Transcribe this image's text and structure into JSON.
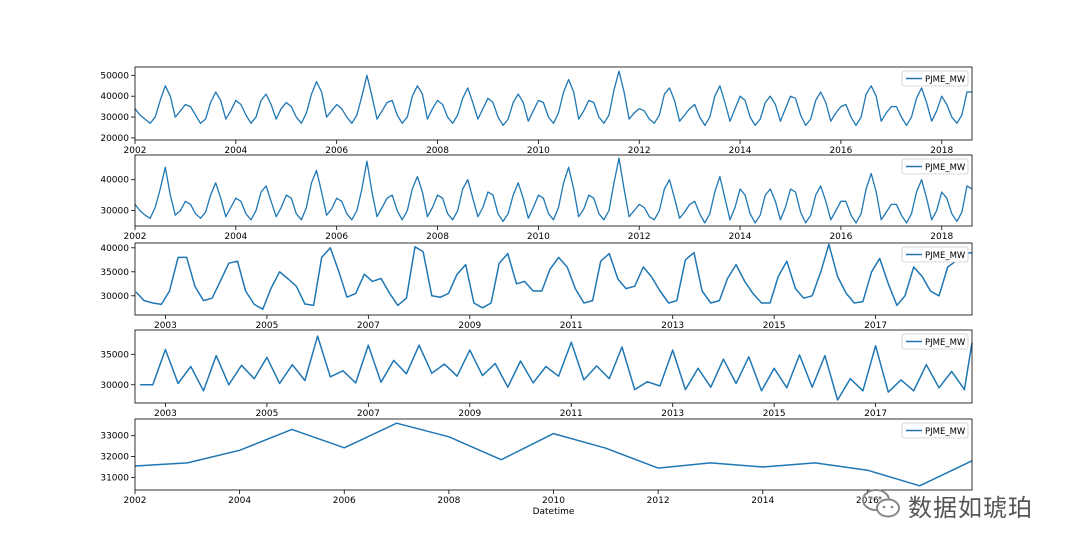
{
  "chart_data": [
    {
      "type": "line",
      "series": [
        {
          "name": "PJME_MW"
        }
      ],
      "legend": "upper right",
      "xlim": [
        2002.0,
        2018.6
      ],
      "ylim": [
        19000,
        54000
      ],
      "x_ticks": [
        "2002",
        "2004",
        "2006",
        "2008",
        "2010",
        "2012",
        "2014",
        "2016",
        "2018"
      ],
      "y_ticks": [
        "20000",
        "30000",
        "40000",
        "50000"
      ],
      "x": [
        2002.0,
        2002.1,
        2002.2,
        2002.3,
        2002.4,
        2002.5,
        2002.6,
        2002.7,
        2002.8,
        2002.9,
        2003.0,
        2003.1,
        2003.2,
        2003.3,
        2003.4,
        2003.5,
        2003.6,
        2003.7,
        2003.8,
        2003.9,
        2004.0,
        2004.1,
        2004.2,
        2004.3,
        2004.4,
        2004.5,
        2004.6,
        2004.7,
        2004.8,
        2004.9,
        2005.0,
        2005.1,
        2005.2,
        2005.3,
        2005.4,
        2005.5,
        2005.6,
        2005.7,
        2005.8,
        2005.9,
        2006.0,
        2006.1,
        2006.2,
        2006.3,
        2006.4,
        2006.5,
        2006.6,
        2006.7,
        2006.8,
        2006.9,
        2007.0,
        2007.1,
        2007.2,
        2007.3,
        2007.4,
        2007.5,
        2007.6,
        2007.7,
        2007.8,
        2007.9,
        2008.0,
        2008.1,
        2008.2,
        2008.3,
        2008.4,
        2008.5,
        2008.6,
        2008.7,
        2008.8,
        2008.9,
        2009.0,
        2009.1,
        2009.2,
        2009.3,
        2009.4,
        2009.5,
        2009.6,
        2009.7,
        2009.8,
        2009.9,
        2010.0,
        2010.1,
        2010.2,
        2010.3,
        2010.4,
        2010.5,
        2010.6,
        2010.7,
        2010.8,
        2010.9,
        2011.0,
        2011.1,
        2011.2,
        2011.3,
        2011.4,
        2011.5,
        2011.6,
        2011.7,
        2011.8,
        2011.9,
        2012.0,
        2012.1,
        2012.2,
        2012.3,
        2012.4,
        2012.5,
        2012.6,
        2012.7,
        2012.8,
        2012.9,
        2013.0,
        2013.1,
        2013.2,
        2013.3,
        2013.4,
        2013.5,
        2013.6,
        2013.7,
        2013.8,
        2013.9,
        2014.0,
        2014.1,
        2014.2,
        2014.3,
        2014.4,
        2014.5,
        2014.6,
        2014.7,
        2014.8,
        2014.9,
        2015.0,
        2015.1,
        2015.2,
        2015.3,
        2015.4,
        2015.5,
        2015.6,
        2015.7,
        2015.8,
        2015.9,
        2016.0,
        2016.1,
        2016.2,
        2016.3,
        2016.4,
        2016.5,
        2016.6,
        2016.7,
        2016.8,
        2016.9,
        2017.0,
        2017.1,
        2017.2,
        2017.3,
        2017.4,
        2017.5,
        2017.6,
        2017.7,
        2017.8,
        2017.9,
        2018.0,
        2018.1,
        2018.2,
        2018.3,
        2018.4,
        2018.5,
        2018.6
      ],
      "values": [
        34000,
        31000,
        29000,
        27000,
        30000,
        38000,
        45000,
        40000,
        30000,
        33000,
        36000,
        35000,
        31000,
        27000,
        29000,
        37000,
        42000,
        38000,
        29000,
        33000,
        38000,
        36000,
        31000,
        27000,
        30000,
        38000,
        41000,
        36000,
        29000,
        34000,
        37000,
        35000,
        30000,
        27000,
        32000,
        41000,
        47000,
        42000,
        30000,
        33000,
        36000,
        34000,
        30000,
        27000,
        31000,
        40000,
        50000,
        40000,
        29000,
        33000,
        37000,
        38000,
        31000,
        27000,
        30000,
        40000,
        45000,
        41000,
        29000,
        34000,
        38000,
        36000,
        30000,
        27000,
        31000,
        39000,
        44000,
        37000,
        29000,
        34000,
        39000,
        37000,
        30000,
        26000,
        29000,
        37000,
        41000,
        37000,
        28000,
        33000,
        38000,
        37000,
        30000,
        27000,
        32000,
        42000,
        48000,
        42000,
        29000,
        33000,
        38000,
        37000,
        30000,
        27000,
        31000,
        43000,
        52000,
        42000,
        29000,
        32000,
        34000,
        33000,
        29000,
        27000,
        31000,
        41000,
        44000,
        38000,
        28000,
        31000,
        34000,
        36000,
        30000,
        26000,
        30000,
        40000,
        45000,
        37000,
        28000,
        34000,
        40000,
        38000,
        30000,
        26000,
        29000,
        37000,
        40000,
        36000,
        28000,
        34000,
        40000,
        39000,
        31000,
        26000,
        29000,
        38000,
        42000,
        37000,
        28000,
        32000,
        35000,
        36000,
        30000,
        26000,
        30000,
        41000,
        45000,
        40000,
        28000,
        32000,
        35000,
        35000,
        30000,
        26000,
        30000,
        39000,
        44000,
        37000,
        28000,
        33000,
        40000,
        36000,
        30000,
        27000,
        31000,
        42000,
        42000
      ]
    },
    {
      "type": "line",
      "series": [
        {
          "name": "PJME_MW"
        }
      ],
      "legend": "upper right",
      "xlim": [
        2002.0,
        2018.6
      ],
      "ylim": [
        25000,
        48000
      ],
      "x_ticks": [
        "2002",
        "2004",
        "2006",
        "2008",
        "2010",
        "2012",
        "2014",
        "2016",
        "2018"
      ],
      "y_ticks": [
        "30000",
        "40000"
      ],
      "x": [
        2002.0,
        2002.1,
        2002.2,
        2002.3,
        2002.4,
        2002.5,
        2002.6,
        2002.7,
        2002.8,
        2002.9,
        2003.0,
        2003.1,
        2003.2,
        2003.3,
        2003.4,
        2003.5,
        2003.6,
        2003.7,
        2003.8,
        2003.9,
        2004.0,
        2004.1,
        2004.2,
        2004.3,
        2004.4,
        2004.5,
        2004.6,
        2004.7,
        2004.8,
        2004.9,
        2005.0,
        2005.1,
        2005.2,
        2005.3,
        2005.4,
        2005.5,
        2005.6,
        2005.7,
        2005.8,
        2005.9,
        2006.0,
        2006.1,
        2006.2,
        2006.3,
        2006.4,
        2006.5,
        2006.6,
        2006.7,
        2006.8,
        2006.9,
        2007.0,
        2007.1,
        2007.2,
        2007.3,
        2007.4,
        2007.5,
        2007.6,
        2007.7,
        2007.8,
        2007.9,
        2008.0,
        2008.1,
        2008.2,
        2008.3,
        2008.4,
        2008.5,
        2008.6,
        2008.7,
        2008.8,
        2008.9,
        2009.0,
        2009.1,
        2009.2,
        2009.3,
        2009.4,
        2009.5,
        2009.6,
        2009.7,
        2009.8,
        2009.9,
        2010.0,
        2010.1,
        2010.2,
        2010.3,
        2010.4,
        2010.5,
        2010.6,
        2010.7,
        2010.8,
        2010.9,
        2011.0,
        2011.1,
        2011.2,
        2011.3,
        2011.4,
        2011.5,
        2011.6,
        2011.7,
        2011.8,
        2011.9,
        2012.0,
        2012.1,
        2012.2,
        2012.3,
        2012.4,
        2012.5,
        2012.6,
        2012.7,
        2012.8,
        2012.9,
        2013.0,
        2013.1,
        2013.2,
        2013.3,
        2013.4,
        2013.5,
        2013.6,
        2013.7,
        2013.8,
        2013.9,
        2014.0,
        2014.1,
        2014.2,
        2014.3,
        2014.4,
        2014.5,
        2014.6,
        2014.7,
        2014.8,
        2014.9,
        2015.0,
        2015.1,
        2015.2,
        2015.3,
        2015.4,
        2015.5,
        2015.6,
        2015.7,
        2015.8,
        2015.9,
        2016.0,
        2016.1,
        2016.2,
        2016.3,
        2016.4,
        2016.5,
        2016.6,
        2016.7,
        2016.8,
        2016.9,
        2017.0,
        2017.1,
        2017.2,
        2017.3,
        2017.4,
        2017.5,
        2017.6,
        2017.7,
        2017.8,
        2017.9,
        2018.0,
        2018.1,
        2018.2,
        2018.3,
        2018.4,
        2018.5,
        2018.6
      ],
      "values": [
        32000,
        30000,
        28500,
        27500,
        31000,
        37000,
        44000,
        35000,
        28500,
        30000,
        33000,
        32000,
        29000,
        27500,
        29500,
        35000,
        39000,
        34000,
        28000,
        31000,
        34000,
        33000,
        29000,
        27000,
        30000,
        36000,
        38000,
        33000,
        28000,
        31000,
        35000,
        34000,
        29000,
        27000,
        31000,
        39000,
        43000,
        36000,
        28500,
        30500,
        34000,
        33000,
        29000,
        27000,
        30000,
        37000,
        46000,
        36000,
        28000,
        31000,
        34000,
        35000,
        30000,
        27000,
        30000,
        37000,
        41000,
        36000,
        28000,
        31000,
        35000,
        34000,
        29000,
        27000,
        30000,
        37000,
        40000,
        34000,
        28000,
        31000,
        36000,
        35000,
        29000,
        26500,
        29000,
        35000,
        39000,
        34000,
        27500,
        31000,
        35000,
        34000,
        29000,
        27000,
        31000,
        39000,
        44000,
        37000,
        28000,
        30500,
        35000,
        34000,
        29000,
        27000,
        30000,
        39000,
        47000,
        37000,
        28000,
        30000,
        32000,
        31000,
        28000,
        27000,
        30000,
        37000,
        40000,
        34000,
        27500,
        29500,
        32000,
        33000,
        29000,
        26000,
        29000,
        36000,
        41000,
        34000,
        27000,
        31000,
        37000,
        35000,
        29000,
        26000,
        28500,
        35000,
        37000,
        33000,
        27000,
        31000,
        37000,
        36000,
        29500,
        26000,
        28500,
        35000,
        38000,
        33000,
        27000,
        30000,
        33000,
        33000,
        28500,
        26000,
        29000,
        37000,
        42000,
        36000,
        27000,
        29500,
        32000,
        32000,
        28500,
        26000,
        29000,
        36000,
        40000,
        34000,
        27000,
        30000,
        36000,
        34000,
        29000,
        26500,
        29500,
        38000,
        37000
      ]
    },
    {
      "type": "line",
      "series": [
        {
          "name": "PJME_MW"
        }
      ],
      "legend": "upper right",
      "xlim": [
        2002.4,
        2018.9
      ],
      "ylim": [
        26000,
        41000
      ],
      "x_ticks": [
        "2003",
        "2005",
        "2007",
        "2009",
        "2011",
        "2013",
        "2015",
        "2017"
      ],
      "y_ticks": [
        "30000",
        "35000",
        "40000"
      ],
      "x": [
        2002.42,
        2002.58,
        2002.75,
        2002.92,
        2003.08,
        2003.25,
        2003.42,
        2003.58,
        2003.75,
        2003.92,
        2004.08,
        2004.25,
        2004.42,
        2004.58,
        2004.75,
        2004.92,
        2005.08,
        2005.25,
        2005.42,
        2005.58,
        2005.75,
        2005.92,
        2006.08,
        2006.25,
        2006.42,
        2006.58,
        2006.75,
        2006.92,
        2007.08,
        2007.25,
        2007.42,
        2007.58,
        2007.75,
        2007.92,
        2008.08,
        2008.25,
        2008.42,
        2008.58,
        2008.75,
        2008.92,
        2009.08,
        2009.25,
        2009.42,
        2009.58,
        2009.75,
        2009.92,
        2010.08,
        2010.25,
        2010.42,
        2010.58,
        2010.75,
        2010.92,
        2011.08,
        2011.25,
        2011.42,
        2011.58,
        2011.75,
        2011.92,
        2012.08,
        2012.25,
        2012.42,
        2012.58,
        2012.75,
        2012.92,
        2013.08,
        2013.25,
        2013.42,
        2013.58,
        2013.75,
        2013.92,
        2014.08,
        2014.25,
        2014.42,
        2014.58,
        2014.75,
        2014.92,
        2015.08,
        2015.25,
        2015.42,
        2015.58,
        2015.75,
        2015.92,
        2016.08,
        2016.25,
        2016.42,
        2016.58,
        2016.75,
        2016.92,
        2017.08,
        2017.25,
        2017.42,
        2017.58,
        2017.75,
        2017.92,
        2018.08,
        2018.25,
        2018.42,
        2018.58,
        2018.75,
        2018.9
      ],
      "values": [
        30800,
        29000,
        28500,
        28200,
        31000,
        38000,
        38000,
        32000,
        29000,
        29500,
        33000,
        36800,
        37200,
        31000,
        28200,
        27200,
        31500,
        35000,
        33500,
        32000,
        28300,
        28000,
        38000,
        40000,
        35000,
        29700,
        30500,
        34500,
        33000,
        33600,
        30500,
        28000,
        29500,
        40200,
        39200,
        30000,
        29700,
        30500,
        34500,
        36500,
        28500,
        27500,
        28500,
        36800,
        38800,
        32500,
        33000,
        31000,
        31000,
        35500,
        38000,
        36000,
        31500,
        28500,
        29000,
        37200,
        38800,
        33500,
        31500,
        32000,
        36000,
        34000,
        31000,
        28500,
        29000,
        37500,
        39000,
        31000,
        28500,
        29000,
        33600,
        36500,
        33000,
        30500,
        28500,
        28500,
        34000,
        37200,
        31500,
        29500,
        30000,
        35000,
        40700,
        34000,
        30500,
        28500,
        28800,
        35000,
        37800,
        32500,
        28000,
        30000,
        36000,
        34000,
        31000,
        30000,
        36000,
        37200,
        38800,
        39000
      ]
    },
    {
      "type": "line",
      "series": [
        {
          "name": "PJME_MW"
        }
      ],
      "legend": "upper right",
      "xlim": [
        2002.4,
        2018.9
      ],
      "ylim": [
        27000,
        39000
      ],
      "x_ticks": [
        "2003",
        "2005",
        "2007",
        "2009",
        "2011",
        "2013",
        "2015",
        "2017"
      ],
      "y_ticks": [
        "30000",
        "35000"
      ],
      "x": [
        2002.5,
        2002.75,
        2003.0,
        2003.25,
        2003.5,
        2003.75,
        2004.0,
        2004.25,
        2004.5,
        2004.75,
        2005.0,
        2005.25,
        2005.5,
        2005.75,
        2006.0,
        2006.25,
        2006.5,
        2006.75,
        2007.0,
        2007.25,
        2007.5,
        2007.75,
        2008.0,
        2008.25,
        2008.5,
        2008.75,
        2009.0,
        2009.25,
        2009.5,
        2009.75,
        2010.0,
        2010.25,
        2010.5,
        2010.75,
        2011.0,
        2011.25,
        2011.5,
        2011.75,
        2012.0,
        2012.25,
        2012.5,
        2012.75,
        2013.0,
        2013.25,
        2013.5,
        2013.75,
        2014.0,
        2014.25,
        2014.5,
        2014.75,
        2015.0,
        2015.25,
        2015.5,
        2015.75,
        2016.0,
        2016.25,
        2016.5,
        2016.75,
        2017.0,
        2017.25,
        2017.5,
        2017.75,
        2018.0,
        2018.25,
        2018.5,
        2018.75,
        2018.9
      ],
      "values": [
        30000,
        30000,
        35800,
        30200,
        33000,
        29000,
        34800,
        30000,
        33200,
        31000,
        34500,
        30200,
        33300,
        30700,
        38000,
        31300,
        32300,
        30300,
        36500,
        30400,
        34000,
        31800,
        36500,
        31900,
        33400,
        31400,
        35700,
        31500,
        33500,
        29600,
        33900,
        30300,
        33000,
        31400,
        37000,
        30800,
        33100,
        31000,
        36200,
        29200,
        30500,
        29800,
        35700,
        29200,
        32700,
        29600,
        34200,
        30200,
        34600,
        29000,
        32700,
        29500,
        34900,
        29600,
        34800,
        27500,
        31000,
        29000,
        36400,
        28800,
        30800,
        29000,
        33300,
        29500,
        32200,
        29200,
        36900
      ]
    },
    {
      "type": "line",
      "series": [
        {
          "name": "PJME_MW"
        }
      ],
      "legend": "upper right",
      "xlim": [
        2002.0,
        2018.0
      ],
      "ylim": [
        30400,
        33800
      ],
      "x_ticks": [
        "2002",
        "2004",
        "2006",
        "2008",
        "2010",
        "2012",
        "2014",
        "2016"
      ],
      "y_ticks": [
        "31000",
        "32000",
        "33000"
      ],
      "xlabel": "Datetime",
      "x": [
        2002,
        2003,
        2004,
        2005,
        2006,
        2007,
        2008,
        2009,
        2010,
        2011,
        2012,
        2013,
        2014,
        2015,
        2016,
        2017,
        2018
      ],
      "values": [
        31550,
        31700,
        32300,
        33300,
        32420,
        33600,
        32950,
        31850,
        33100,
        32400,
        31450,
        31700,
        31500,
        31700,
        31350,
        30600,
        31800
      ]
    }
  ],
  "watermark": {
    "text": "数据如琥珀"
  },
  "colors": {
    "line": "#1f77b4",
    "axis": "#000000",
    "legend_border": "#cccccc"
  }
}
